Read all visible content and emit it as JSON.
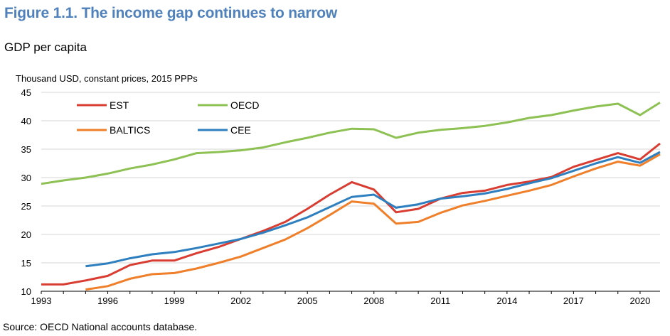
{
  "figure": {
    "title": "Figure 1.1. The income gap continues to narrow",
    "subtitle": "GDP per capita",
    "source": "Source: OECD National accounts database."
  },
  "chart_data": {
    "type": "line",
    "title": "GDP per capita",
    "ylabel": "Thousand USD, constant prices, 2015 PPPs",
    "xlabel": "",
    "xlim": [
      1993,
      2020.9
    ],
    "ylim": [
      10,
      45
    ],
    "yticks": [
      10,
      15,
      20,
      25,
      30,
      35,
      40,
      45
    ],
    "xticks": [
      1993,
      1996,
      1999,
      2002,
      2005,
      2008,
      2011,
      2014,
      2017,
      2020
    ],
    "grid": "horizontal",
    "legend_position": "top-left",
    "series": [
      {
        "name": "EST",
        "color": "#d93d32",
        "points": [
          [
            1993,
            11.2
          ],
          [
            1994,
            11.2
          ],
          [
            1995,
            11.9
          ],
          [
            1996,
            12.7
          ],
          [
            1997,
            14.6
          ],
          [
            1998,
            15.4
          ],
          [
            1999,
            15.4
          ],
          [
            2000,
            16.7
          ],
          [
            2001,
            17.8
          ],
          [
            2002,
            19.2
          ],
          [
            2003,
            20.6
          ],
          [
            2004,
            22.2
          ],
          [
            2005,
            24.5
          ],
          [
            2006,
            27.0
          ],
          [
            2007,
            29.2
          ],
          [
            2008,
            27.9
          ],
          [
            2009,
            23.9
          ],
          [
            2010,
            24.5
          ],
          [
            2011,
            26.3
          ],
          [
            2012,
            27.3
          ],
          [
            2013,
            27.7
          ],
          [
            2014,
            28.7
          ],
          [
            2015,
            29.3
          ],
          [
            2016,
            30.1
          ],
          [
            2017,
            31.9
          ],
          [
            2018,
            33.1
          ],
          [
            2019,
            34.3
          ],
          [
            2020,
            33.2
          ],
          [
            2020.9,
            36.0
          ]
        ]
      },
      {
        "name": "OECD",
        "color": "#8dc153",
        "points": [
          [
            1993,
            28.9
          ],
          [
            1994,
            29.5
          ],
          [
            1995,
            30.0
          ],
          [
            1996,
            30.7
          ],
          [
            1997,
            31.6
          ],
          [
            1998,
            32.3
          ],
          [
            1999,
            33.2
          ],
          [
            2000,
            34.3
          ],
          [
            2001,
            34.5
          ],
          [
            2002,
            34.8
          ],
          [
            2003,
            35.3
          ],
          [
            2004,
            36.2
          ],
          [
            2005,
            37.0
          ],
          [
            2006,
            37.9
          ],
          [
            2007,
            38.6
          ],
          [
            2008,
            38.5
          ],
          [
            2009,
            37.0
          ],
          [
            2010,
            37.9
          ],
          [
            2011,
            38.4
          ],
          [
            2012,
            38.7
          ],
          [
            2013,
            39.1
          ],
          [
            2014,
            39.7
          ],
          [
            2015,
            40.5
          ],
          [
            2016,
            41.0
          ],
          [
            2017,
            41.8
          ],
          [
            2018,
            42.5
          ],
          [
            2019,
            43.0
          ],
          [
            2020,
            41.0
          ],
          [
            2020.9,
            43.2
          ]
        ]
      },
      {
        "name": "BALTICS",
        "color": "#ef7f2a",
        "points": [
          [
            1995,
            10.3
          ],
          [
            1996,
            10.9
          ],
          [
            1997,
            12.2
          ],
          [
            1998,
            13.0
          ],
          [
            1999,
            13.2
          ],
          [
            2000,
            14.0
          ],
          [
            2001,
            15.0
          ],
          [
            2002,
            16.1
          ],
          [
            2003,
            17.6
          ],
          [
            2004,
            19.1
          ],
          [
            2005,
            21.1
          ],
          [
            2006,
            23.4
          ],
          [
            2007,
            25.8
          ],
          [
            2008,
            25.4
          ],
          [
            2009,
            21.9
          ],
          [
            2010,
            22.2
          ],
          [
            2011,
            23.8
          ],
          [
            2012,
            25.1
          ],
          [
            2013,
            25.9
          ],
          [
            2014,
            26.8
          ],
          [
            2015,
            27.7
          ],
          [
            2016,
            28.7
          ],
          [
            2017,
            30.2
          ],
          [
            2018,
            31.6
          ],
          [
            2019,
            32.8
          ],
          [
            2020,
            32.1
          ],
          [
            2020.9,
            34.1
          ]
        ]
      },
      {
        "name": "CEE",
        "color": "#2d7fbf",
        "points": [
          [
            1995,
            14.4
          ],
          [
            1996,
            14.9
          ],
          [
            1997,
            15.8
          ],
          [
            1998,
            16.5
          ],
          [
            1999,
            16.9
          ],
          [
            2000,
            17.6
          ],
          [
            2001,
            18.4
          ],
          [
            2002,
            19.2
          ],
          [
            2003,
            20.3
          ],
          [
            2004,
            21.6
          ],
          [
            2005,
            23.0
          ],
          [
            2006,
            24.8
          ],
          [
            2007,
            26.6
          ],
          [
            2008,
            27.0
          ],
          [
            2009,
            24.7
          ],
          [
            2010,
            25.3
          ],
          [
            2011,
            26.3
          ],
          [
            2012,
            26.7
          ],
          [
            2013,
            27.2
          ],
          [
            2014,
            28.0
          ],
          [
            2015,
            29.0
          ],
          [
            2016,
            29.9
          ],
          [
            2017,
            31.2
          ],
          [
            2018,
            32.5
          ],
          [
            2019,
            33.6
          ],
          [
            2020,
            32.6
          ],
          [
            2020.9,
            34.5
          ]
        ]
      }
    ]
  }
}
